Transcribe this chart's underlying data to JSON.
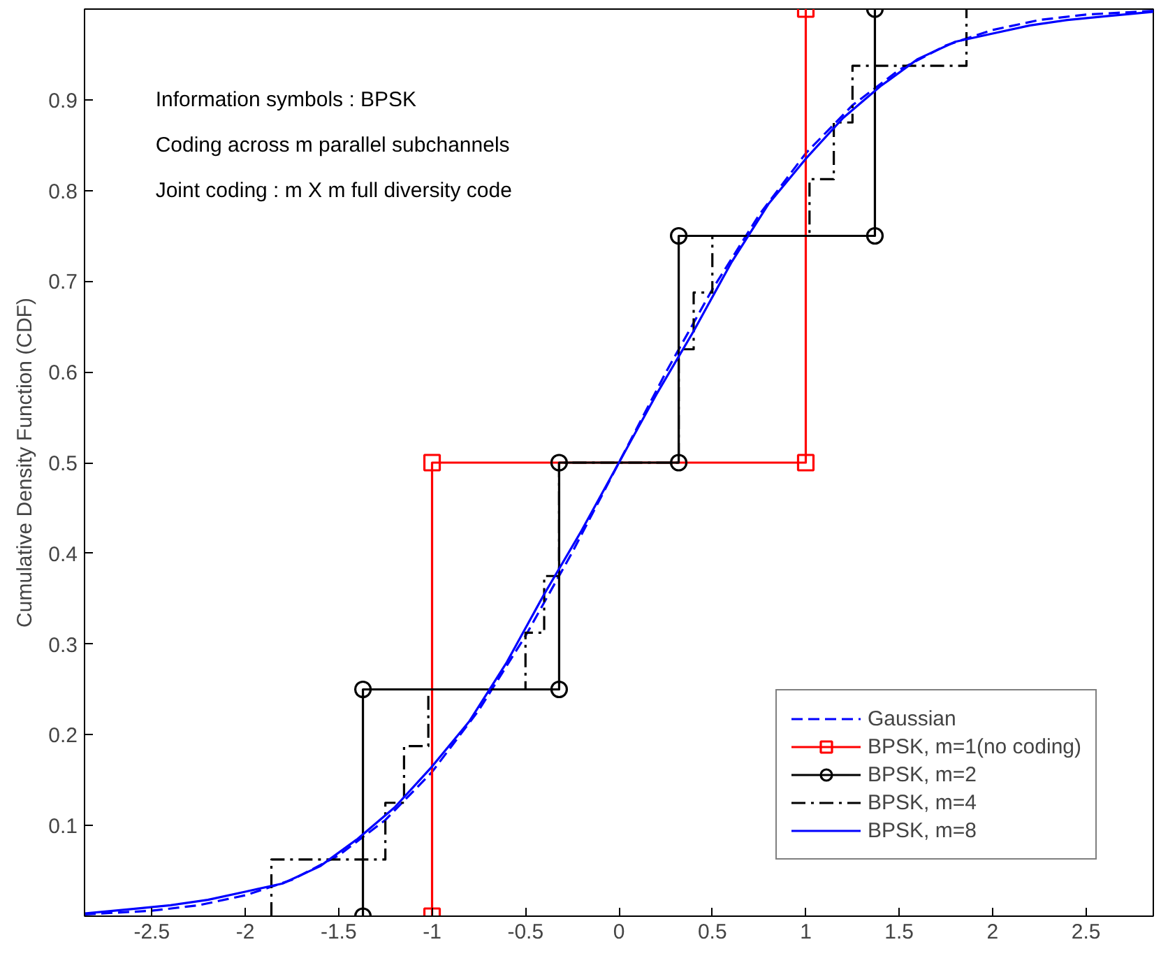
{
  "chart_data": {
    "type": "line",
    "ylabel": "Cumulative Density Function (CDF)",
    "xlim": [
      -2.86,
      2.86
    ],
    "xticks": [
      -2.5,
      -2,
      -1.5,
      -1,
      -0.5,
      0,
      0.5,
      1,
      1.5,
      2,
      2.5
    ],
    "ylim": [
      0,
      1
    ],
    "yticks": [
      0.1,
      0.2,
      0.3,
      0.4,
      0.5,
      0.6,
      0.7,
      0.8,
      0.9
    ],
    "grid": false,
    "legend": "bottom right",
    "annotations": [
      "Information symbols : BPSK",
      "Coding across m parallel subchannels",
      "Joint coding : m X m full diversity code"
    ],
    "series": [
      {
        "name": "Gaussian",
        "color": "#0000ff",
        "line_style": "dashed",
        "marker": "none",
        "x": [
          -2.86,
          -2.5,
          -2.25,
          -2,
          -1.75,
          -1.5,
          -1.25,
          -1,
          -0.75,
          -0.5,
          -0.25,
          0,
          0.25,
          0.5,
          0.75,
          1,
          1.25,
          1.5,
          1.75,
          2,
          2.25,
          2.5,
          2.86
        ],
        "values": [
          0.002,
          0.006,
          0.012,
          0.023,
          0.04,
          0.067,
          0.106,
          0.159,
          0.227,
          0.309,
          0.401,
          0.5,
          0.599,
          0.691,
          0.773,
          0.841,
          0.894,
          0.933,
          0.96,
          0.977,
          0.988,
          0.994,
          0.998
        ]
      },
      {
        "name": "BPSK, m=1(no coding)",
        "color": "#ff0000",
        "line_style": "solid",
        "marker": "square",
        "x": [
          -1,
          -1,
          1,
          1
        ],
        "values": [
          0,
          0.5,
          0.5,
          1
        ]
      },
      {
        "name": "BPSK, m=2",
        "color": "#000000",
        "line_style": "solid",
        "marker": "circle",
        "x": [
          -1.37,
          -1.37,
          -0.32,
          -0.32,
          0.32,
          0.32,
          1.37,
          1.37
        ],
        "values": [
          0,
          0.25,
          0.25,
          0.5,
          0.5,
          0.75,
          0.75,
          1
        ]
      },
      {
        "name": "BPSK, m=4",
        "type": "step",
        "color": "#000000",
        "line_style": "dashdot",
        "marker": "none",
        "x": [
          -1.86,
          -1.86,
          -1.25,
          -1.15,
          -1.02,
          -0.5,
          -0.4,
          -0.32,
          0.32,
          0.4,
          0.5,
          1.02,
          1.15,
          1.25,
          1.86
        ],
        "values": [
          0,
          0.0625,
          0.125,
          0.1875,
          0.25,
          0.3125,
          0.375,
          0.5,
          0.625,
          0.6875,
          0.75,
          0.8125,
          0.875,
          0.9375,
          1
        ]
      },
      {
        "name": "BPSK, m=8",
        "color": "#0000ff",
        "line_style": "solid",
        "marker": "none",
        "x": [
          -2.86,
          -2.6,
          -2.4,
          -2.2,
          -2.0,
          -1.8,
          -1.6,
          -1.4,
          -1.2,
          -1.0,
          -0.8,
          -0.6,
          -0.4,
          -0.2,
          0,
          0.2,
          0.4,
          0.6,
          0.8,
          1.0,
          1.2,
          1.4,
          1.6,
          1.8,
          2.0,
          2.2,
          2.4,
          2.6,
          2.86
        ],
        "values": [
          0.003,
          0.008,
          0.012,
          0.018,
          0.027,
          0.036,
          0.055,
          0.085,
          0.12,
          0.165,
          0.215,
          0.28,
          0.355,
          0.425,
          0.5,
          0.575,
          0.645,
          0.72,
          0.785,
          0.835,
          0.88,
          0.915,
          0.945,
          0.964,
          0.973,
          0.982,
          0.988,
          0.992,
          0.997
        ]
      }
    ]
  }
}
